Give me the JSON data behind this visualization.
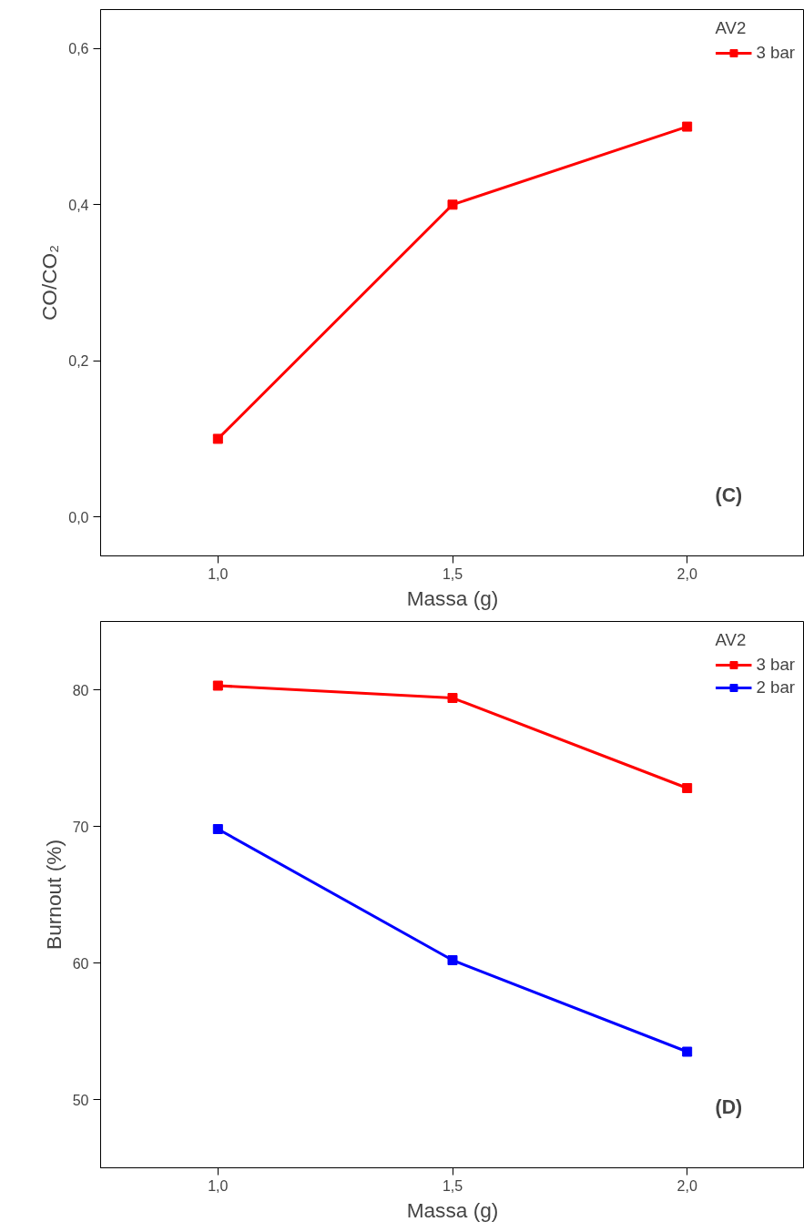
{
  "chart_data": [
    {
      "type": "line",
      "xlabel": "Massa (g)",
      "ylabel": "CO/CO₂",
      "legend_title": "AV2",
      "x": [
        1.0,
        1.5,
        2.0
      ],
      "series": [
        {
          "name": "3 bar",
          "color": "#ff0000",
          "values": [
            0.1,
            0.4,
            0.5
          ]
        }
      ],
      "xlim": [
        0.75,
        2.25
      ],
      "ylim": [
        -0.05,
        0.65
      ],
      "xticks": [
        {
          "value": 1.0,
          "label": "1,0"
        },
        {
          "value": 1.5,
          "label": "1,5"
        },
        {
          "value": 2.0,
          "label": "2,0"
        }
      ],
      "yticks": [
        {
          "value": 0.0,
          "label": "0,0"
        },
        {
          "value": 0.2,
          "label": "0,2"
        },
        {
          "value": 0.4,
          "label": "0,4"
        },
        {
          "value": 0.6,
          "label": "0,6"
        }
      ],
      "annotations": [
        "(C)"
      ],
      "marker": "square",
      "line_style": "solid",
      "grid": false,
      "legend": "top right"
    },
    {
      "type": "line",
      "xlabel": "Massa (g)",
      "ylabel": "Burnout (%)",
      "legend_title": "AV2",
      "x": [
        1.0,
        1.5,
        2.0
      ],
      "series": [
        {
          "name": "3 bar",
          "color": "#ff0000",
          "values": [
            80.3,
            79.4,
            72.8
          ]
        },
        {
          "name": "2 bar",
          "color": "#0000ff",
          "values": [
            69.8,
            60.2,
            53.5
          ]
        }
      ],
      "xlim": [
        0.75,
        2.25
      ],
      "ylim": [
        45,
        85
      ],
      "xticks": [
        {
          "value": 1.0,
          "label": "1,0"
        },
        {
          "value": 1.5,
          "label": "1,5"
        },
        {
          "value": 2.0,
          "label": "2,0"
        }
      ],
      "yticks": [
        50,
        60,
        70,
        80
      ],
      "annotations": [
        "(D)"
      ],
      "marker": "square",
      "line_style": "solid",
      "grid": false,
      "legend": "top right"
    }
  ]
}
